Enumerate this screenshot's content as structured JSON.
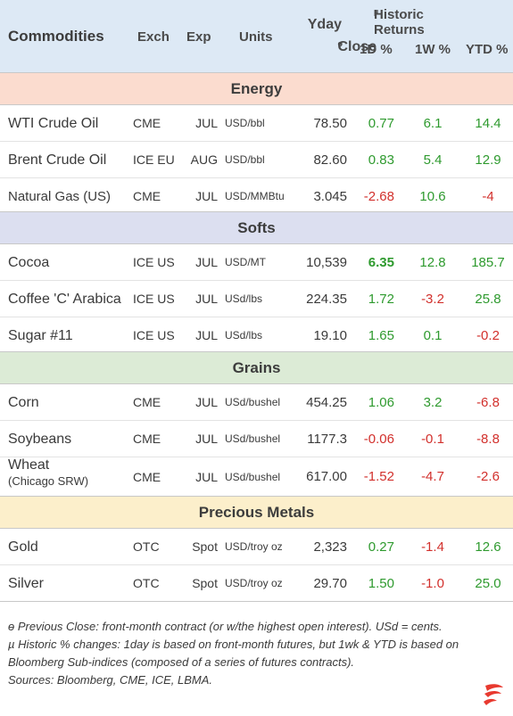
{
  "header": {
    "title": "Commodities",
    "exch": "Exch",
    "exp": "Exp",
    "units": "Units",
    "yday": "Yday",
    "close": "Close",
    "close_marker": "ɵ",
    "historic": "Historic Returns",
    "historic_marker": "µ",
    "d1": "1D %",
    "w1": "1W %",
    "ytd": "YTD %"
  },
  "sections": {
    "energy": "Energy",
    "softs": "Softs",
    "grains": "Grains",
    "metals": "Precious Metals"
  },
  "rows": [
    {
      "name": "WTI Crude Oil",
      "exch": "CME",
      "exp": "JUL",
      "units": "USD/bbl",
      "close": "78.50",
      "d1": "0.77",
      "w1": "6.1",
      "ytd": "14.4"
    },
    {
      "name": "Brent Crude Oil",
      "exch": "ICE EU",
      "exp": "AUG",
      "units": "USD/bbl",
      "close": "82.60",
      "d1": "0.83",
      "w1": "5.4",
      "ytd": "12.9"
    },
    {
      "name": "Natural Gas (US)",
      "exch": "CME",
      "exp": "JUL",
      "units": "USD/MMBtu",
      "close": "3.045",
      "d1": "-2.68",
      "w1": "10.6",
      "ytd": "-4"
    },
    {
      "name": "Cocoa",
      "exch": "ICE US",
      "exp": "JUL",
      "units": "USD/MT",
      "close": "10,539",
      "d1": "6.35",
      "w1": "12.8",
      "ytd": "185.7"
    },
    {
      "name": "Coffee 'C' Arabica",
      "exch": "ICE US",
      "exp": "JUL",
      "units": "USd/lbs",
      "close": "224.35",
      "d1": "1.72",
      "w1": "-3.2",
      "ytd": "25.8"
    },
    {
      "name": "Sugar #11",
      "exch": "ICE US",
      "exp": "JUL",
      "units": "USd/lbs",
      "close": "19.10",
      "d1": "1.65",
      "w1": "0.1",
      "ytd": "-0.2"
    },
    {
      "name": "Corn",
      "exch": "CME",
      "exp": "JUL",
      "units": "USd/bushel",
      "close": "454.25",
      "d1": "1.06",
      "w1": "3.2",
      "ytd": "-6.8"
    },
    {
      "name": "Soybeans",
      "exch": "CME",
      "exp": "JUL",
      "units": "USd/bushel",
      "close": "1177.3",
      "d1": "-0.06",
      "w1": "-0.1",
      "ytd": "-8.8"
    },
    {
      "name": "Wheat",
      "name_sub": "(Chicago SRW)",
      "exch": "CME",
      "exp": "JUL",
      "units": "USd/bushel",
      "close": "617.00",
      "d1": "-1.52",
      "w1": "-4.7",
      "ytd": "-2.6"
    },
    {
      "name": "Gold",
      "exch": "OTC",
      "exp": "Spot",
      "units": "USD/troy oz",
      "close": "2,323",
      "d1": "0.27",
      "w1": "-1.4",
      "ytd": "12.6"
    },
    {
      "name": "Silver",
      "exch": "OTC",
      "exp": "Spot",
      "units": "USD/troy oz",
      "close": "29.70",
      "d1": "1.50",
      "w1": "-1.0",
      "ytd": "25.0"
    }
  ],
  "notes": {
    "close_note": "ɵ Previous Close: front-month contract (or w/the highest open interest). USd = cents.",
    "historic_note": "µ Historic % changes: 1day is based on front-month futures, but 1wk & YTD is based on Bloomberg Sub-indices (composed of a series of futures contracts).",
    "sources": "Sources: Bloomberg, CME, ICE, LBMA."
  },
  "colors": {
    "header_bg": "#dde9f5",
    "energy_bg": "#fbdccf",
    "softs_bg": "#dcdff0",
    "grains_bg": "#dcebd6",
    "metals_bg": "#fcefcb",
    "positive": "#2e9a2e",
    "negative": "#d2302c",
    "logo": "#e8392f"
  },
  "icons": {
    "logo": "flame-logo-icon"
  }
}
